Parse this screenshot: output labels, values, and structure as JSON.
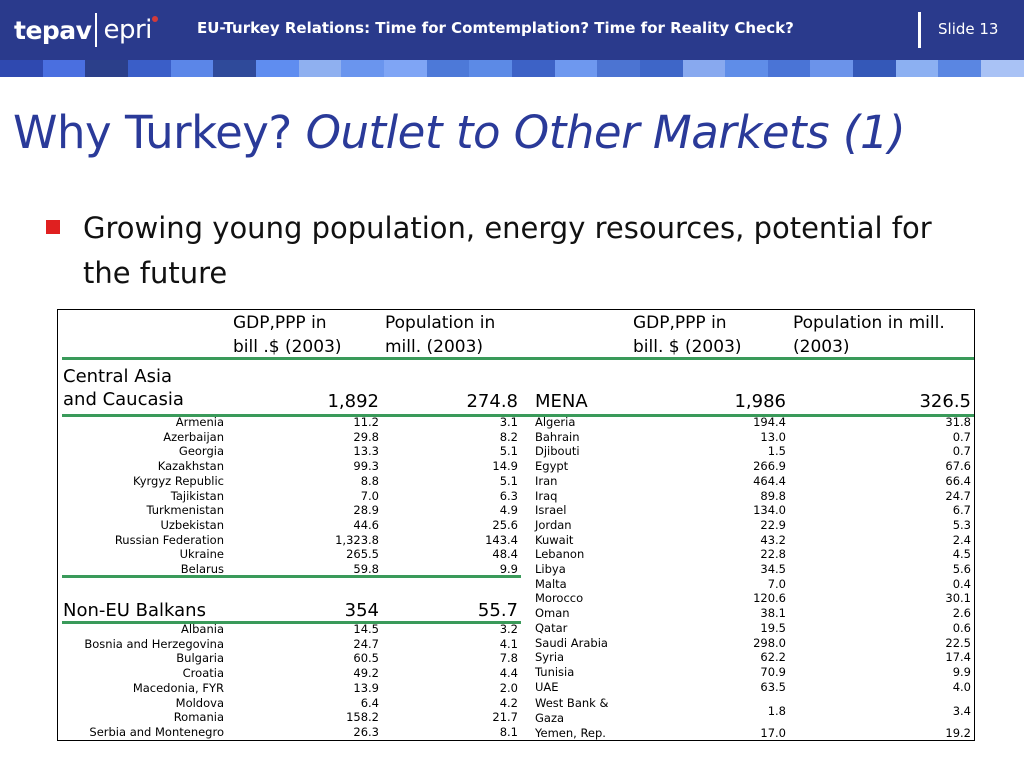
{
  "header": {
    "logo_left": "tepav",
    "logo_right": "epri",
    "title": "EU-Turkey Relations: Time for Comtemplation? Time for Reality Check?",
    "slide": "Slide 13",
    "bg_color": "#2a3a8c"
  },
  "stripe_colors": [
    "#2f49b0",
    "#4a6fe0",
    "#2b3f8a",
    "#3a5ec8",
    "#5b86e8",
    "#2f4a9a",
    "#5f8df0",
    "#8fb0f0",
    "#6a95ee",
    "#7fa5f5",
    "#4d79d8",
    "#5c8ae6",
    "#3d62c6",
    "#6e98ef",
    "#4c74d2",
    "#3e66c8",
    "#88a9ef",
    "#5f8de8",
    "#4a74d6",
    "#6b93ea",
    "#3458b8",
    "#8cb0f2",
    "#5a86e2",
    "#a9c2f5"
  ],
  "title": {
    "plain": "Why Turkey? ",
    "italic": "Outlet to Other Markets (1)",
    "color": "#2a3a99"
  },
  "bullet": {
    "text": "Growing young population, energy resources, potential for the future",
    "icon": "square-bullet-icon"
  },
  "table": {
    "headers": {
      "gdp_left": [
        "GDP,PPP in",
        "bill .$ (2003)"
      ],
      "pop_left": [
        "Population in",
        "mill. (2003)"
      ],
      "gdp_right": [
        "GDP,PPP in",
        "bill. $ (2003)"
      ],
      "pop_right": [
        "Population in mill.",
        "(2003)"
      ]
    },
    "left_group1": {
      "name": [
        "Central Asia",
        "and Caucasia"
      ],
      "gdp": "1,892",
      "pop": "274.8"
    },
    "left_group1_rows": [
      [
        "Armenia",
        "11.2",
        "3.1"
      ],
      [
        "Azerbaijan",
        "29.8",
        "8.2"
      ],
      [
        "Georgia",
        "13.3",
        "5.1"
      ],
      [
        "Kazakhstan",
        "99.3",
        "14.9"
      ],
      [
        "Kyrgyz Republic",
        "8.8",
        "5.1"
      ],
      [
        "Tajikistan",
        "7.0",
        "6.3"
      ],
      [
        "Turkmenistan",
        "28.9",
        "4.9"
      ],
      [
        "Uzbekistan",
        "44.6",
        "25.6"
      ],
      [
        "Russian Federation",
        "1,323.8",
        "143.4"
      ],
      [
        "Ukraine",
        "265.5",
        "48.4"
      ],
      [
        "Belarus",
        "59.8",
        "9.9"
      ]
    ],
    "left_group2": {
      "name": "Non-EU Balkans",
      "gdp": "354",
      "pop": "55.7"
    },
    "left_group2_rows": [
      [
        "Albania",
        "14.5",
        "3.2"
      ],
      [
        "Bosnia and Herzegovina",
        "24.7",
        "4.1"
      ],
      [
        "Bulgaria",
        "60.5",
        "7.8"
      ],
      [
        "Croatia",
        "49.2",
        "4.4"
      ],
      [
        "Macedonia, FYR",
        "13.9",
        "2.0"
      ],
      [
        "Moldova",
        "6.4",
        "4.2"
      ],
      [
        "Romania",
        "158.2",
        "21.7"
      ],
      [
        "Serbia and Montenegro",
        "26.3",
        "8.1"
      ]
    ],
    "right_group": {
      "name": "MENA",
      "gdp": "1,986",
      "pop": "326.5"
    },
    "right_rows": [
      [
        "Algeria",
        "194.4",
        "31.8"
      ],
      [
        "Bahrain",
        "13.0",
        "0.7"
      ],
      [
        "Djibouti",
        "1.5",
        "0.7"
      ],
      [
        "Egypt",
        "266.9",
        "67.6"
      ],
      [
        "Iran",
        "464.4",
        "66.4"
      ],
      [
        "Iraq",
        "89.8",
        "24.7"
      ],
      [
        "Israel",
        "134.0",
        "6.7"
      ],
      [
        "Jordan",
        "22.9",
        "5.3"
      ],
      [
        "Kuwait",
        "43.2",
        "2.4"
      ],
      [
        "Lebanon",
        "22.8",
        "4.5"
      ],
      [
        "Libya",
        "34.5",
        "5.6"
      ],
      [
        "Malta",
        "7.0",
        "0.4"
      ],
      [
        "Morocco",
        "120.6",
        "30.1"
      ],
      [
        "Oman",
        "38.1",
        "2.6"
      ],
      [
        "Qatar",
        "19.5",
        "0.6"
      ],
      [
        "Saudi Arabia",
        "298.0",
        "22.5"
      ],
      [
        "Syria",
        "62.2",
        "17.4"
      ],
      [
        "Tunisia",
        "70.9",
        "9.9"
      ],
      [
        "UAE",
        "63.5",
        "4.0"
      ]
    ],
    "right_wb": {
      "name": [
        "West Bank &",
        "Gaza"
      ],
      "gdp": "1.8",
      "pop": "3.4"
    },
    "right_last": [
      "Yemen, Rep.",
      "17.0",
      "19.2"
    ]
  }
}
